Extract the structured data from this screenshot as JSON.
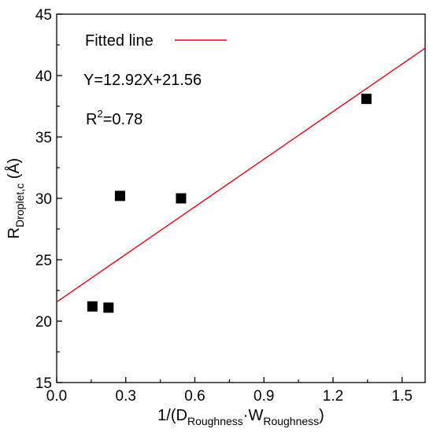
{
  "chart_data": {
    "type": "scatter",
    "xlim": [
      0.0,
      1.6
    ],
    "ylim": [
      15,
      45
    ],
    "x_ticks": [
      0.0,
      0.3,
      0.6,
      0.9,
      1.2,
      1.5
    ],
    "x_tick_labels": [
      "0.0",
      "0.3",
      "0.6",
      "0.9",
      "1.2",
      "1.5"
    ],
    "y_ticks": [
      15,
      20,
      25,
      30,
      35,
      40,
      45
    ],
    "y_tick_labels": [
      "15",
      "20",
      "25",
      "30",
      "35",
      "40",
      "45"
    ],
    "xlabel": {
      "prefix": "1/(D",
      "sub1": "Roughness",
      "middle": "·W",
      "sub2": "Roughness",
      "suffix": ")"
    },
    "ylabel": {
      "main": "R",
      "sub": "Droplet,c",
      "suffix": " (Å)"
    },
    "grid": false,
    "legend_position": "top-left",
    "points": [
      {
        "x": 0.155,
        "y": 21.2
      },
      {
        "x": 0.225,
        "y": 21.1
      },
      {
        "x": 0.275,
        "y": 30.2
      },
      {
        "x": 0.54,
        "y": 30.0
      },
      {
        "x": 1.345,
        "y": 38.1
      }
    ],
    "fit": {
      "slope": 12.92,
      "intercept": 21.56,
      "color": "#e8000b"
    },
    "legend_label": "Fitted line",
    "equation_text": "Y=12.92X+21.56",
    "r2": {
      "main": "R",
      "sup": "2",
      "rest": "=0.78"
    },
    "marker_color": "#000000"
  }
}
